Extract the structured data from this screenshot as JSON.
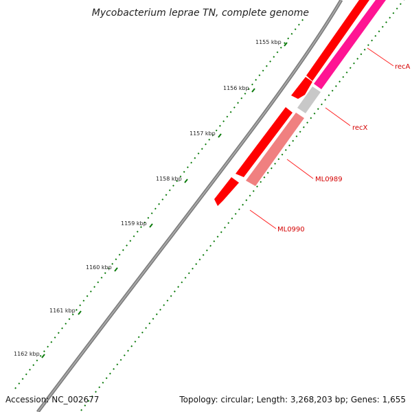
{
  "title": "Mycobacterium leprae TN, complete genome",
  "ticks": [
    "1155 kbp",
    "1156 kbp",
    "1157 kbp",
    "1158 kbp",
    "1159 kbp",
    "1160 kbp",
    "1161 kbp",
    "1162 kbp"
  ],
  "genes": [
    {
      "name": "recA",
      "color": "#ff1493"
    },
    {
      "name": "recX",
      "color": "#c8c8c8"
    },
    {
      "name": "ML0989",
      "color": "#f08080"
    },
    {
      "name": "ML0990",
      "color": "#ff0000"
    }
  ],
  "colors": {
    "backbone": "#808080",
    "tick_marks": "#0a7a0a",
    "gene_red": "#ff0000",
    "gene_pink": "#ff1493",
    "gene_salmon": "#f08080",
    "gene_grey": "#c8c8c8",
    "label_red": "#d40000"
  },
  "footer": {
    "accession": "Accession: NC_002677",
    "topology": "Topology: circular; Length: 3,268,203 bp; Genes: 1,655"
  }
}
